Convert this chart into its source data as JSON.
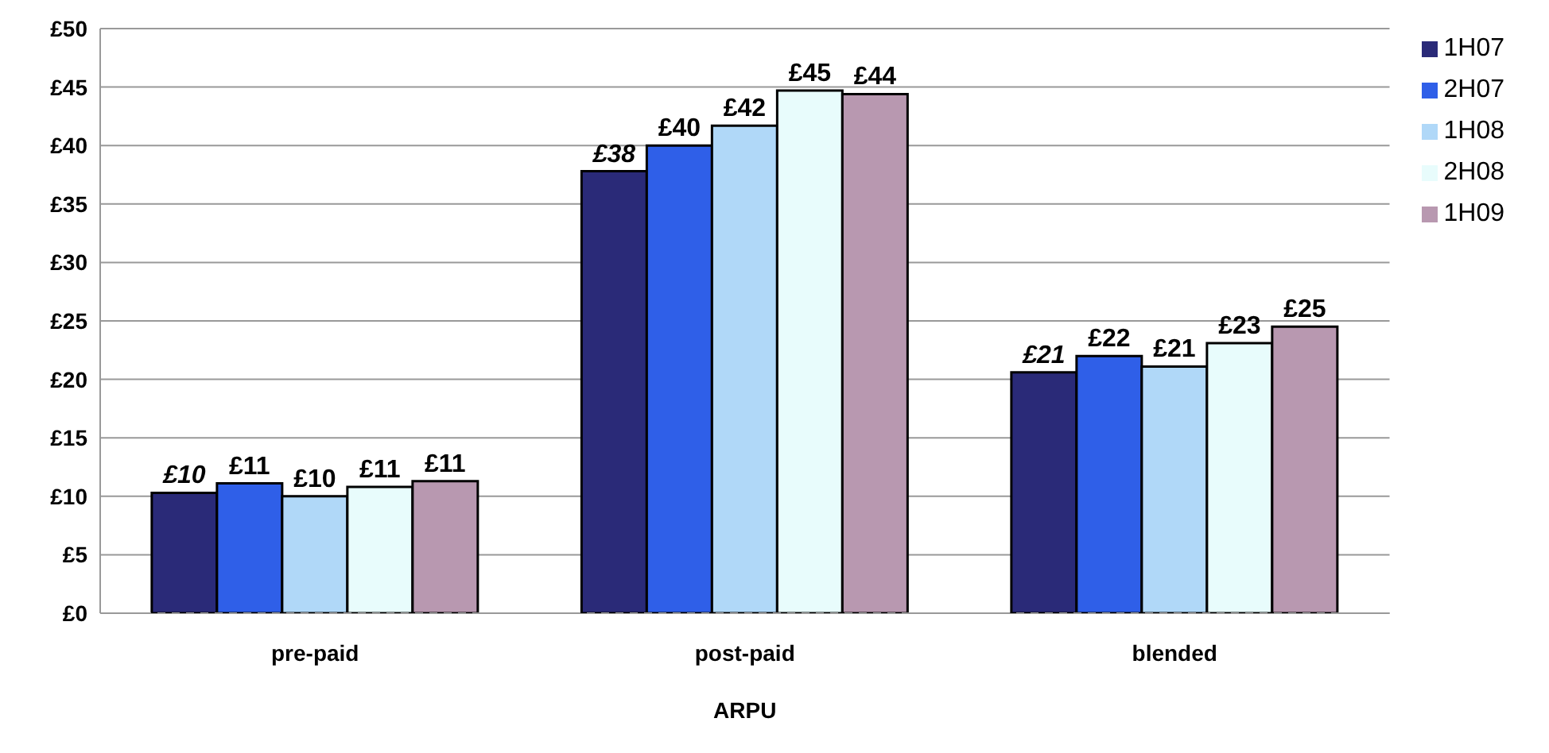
{
  "chart_data": {
    "type": "bar",
    "xlabel": "ARPU",
    "categories": [
      "pre-paid",
      "post-paid",
      "blended"
    ],
    "series": [
      {
        "name": "1H07",
        "color": "#2a2a78",
        "values": [
          10.3,
          37.8,
          20.6
        ],
        "value_labels": [
          "£10",
          "£38",
          "£21"
        ]
      },
      {
        "name": "2H07",
        "color": "#2f5fe8",
        "values": [
          11.1,
          40.0,
          22.0
        ],
        "value_labels": [
          "£11",
          "£40",
          "£22"
        ]
      },
      {
        "name": "1H08",
        "color": "#b0d8f8",
        "values": [
          10.0,
          41.7,
          21.1
        ],
        "value_labels": [
          "£10",
          "£42",
          "£21"
        ]
      },
      {
        "name": "2H08",
        "color": "#e8fcfc",
        "values": [
          10.8,
          44.7,
          23.1
        ],
        "value_labels": [
          "£11",
          "£45",
          "£23"
        ]
      },
      {
        "name": "1H09",
        "color": "#b898b0",
        "values": [
          11.3,
          44.4,
          24.5
        ],
        "value_labels": [
          "£11",
          "£44",
          "£25"
        ]
      }
    ],
    "ylim": [
      0,
      50
    ],
    "yticks": [
      {
        "value": 0,
        "label": "£0"
      },
      {
        "value": 5,
        "label": "£5"
      },
      {
        "value": 10,
        "label": "£10"
      },
      {
        "value": 15,
        "label": "£15"
      },
      {
        "value": 20,
        "label": "£20"
      },
      {
        "value": 25,
        "label": "£25"
      },
      {
        "value": 30,
        "label": "£30"
      },
      {
        "value": 35,
        "label": "£35"
      },
      {
        "value": 40,
        "label": "£40"
      },
      {
        "value": 45,
        "label": "£45"
      },
      {
        "value": 50,
        "label": "£50"
      }
    ],
    "grid": "y",
    "legend": "top right"
  }
}
